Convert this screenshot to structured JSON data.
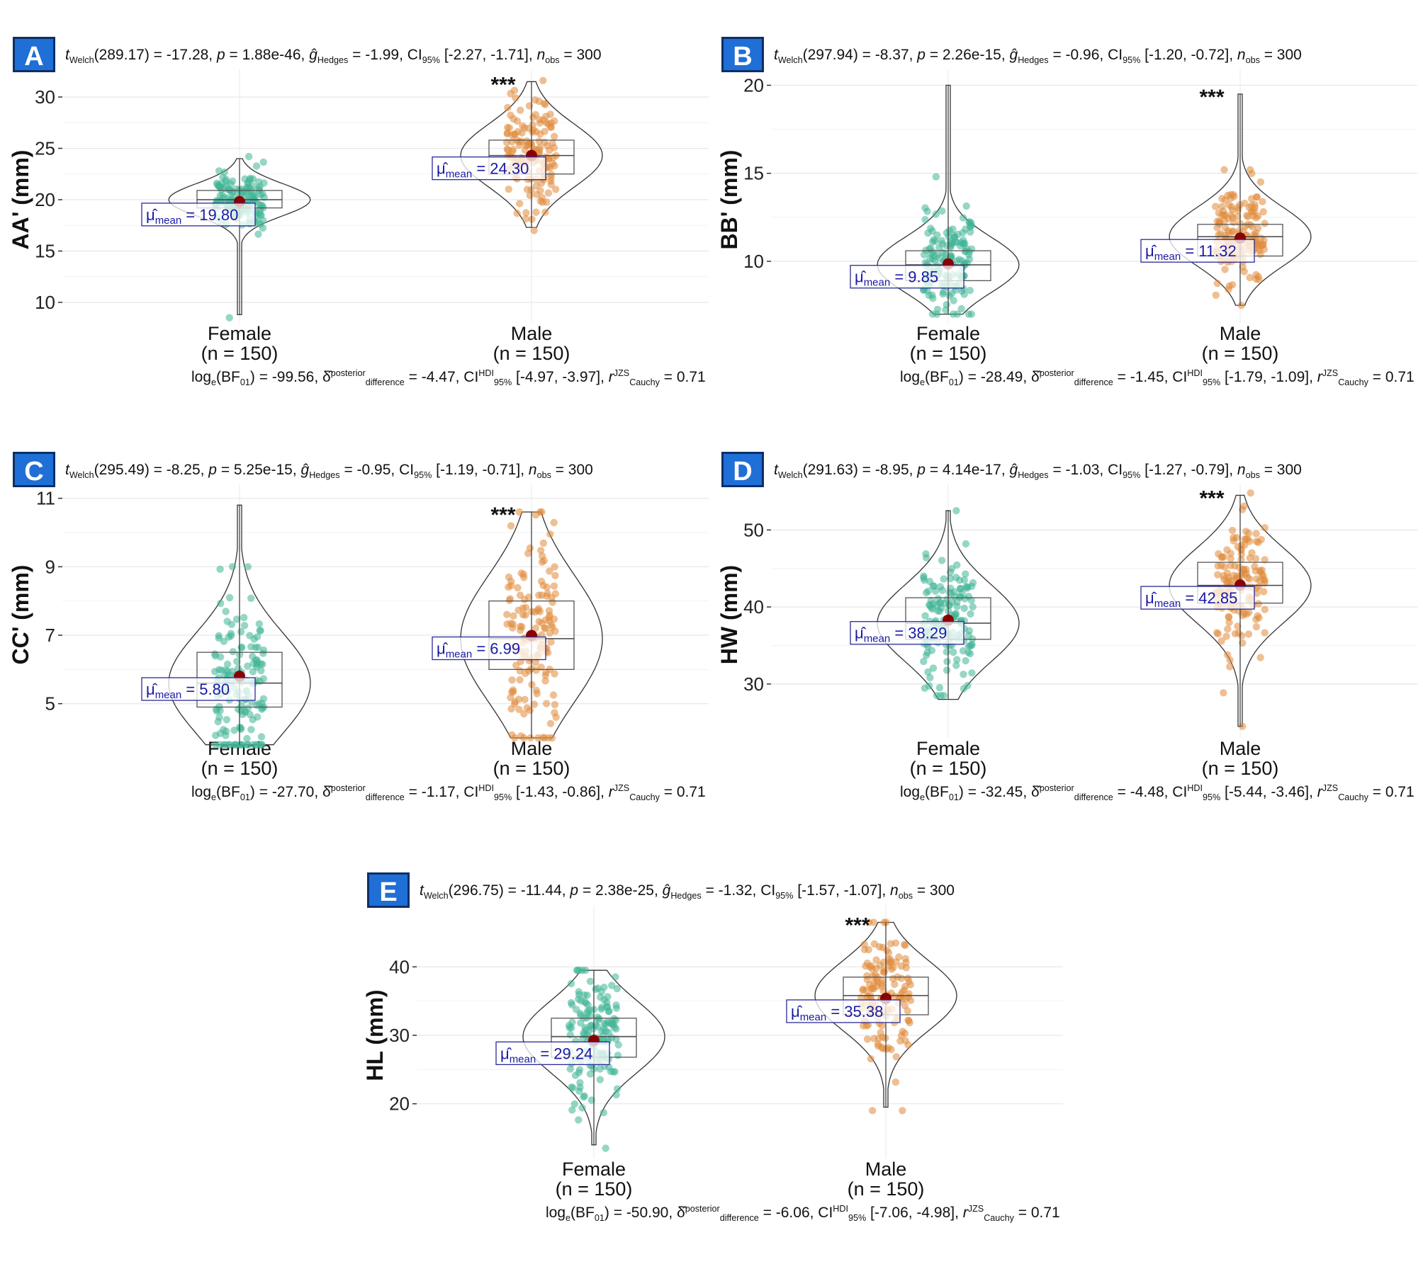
{
  "colors": {
    "female": "#3fb596",
    "male": "#e08a3a",
    "mean_dot": "#8b0000",
    "label_text": "#1a1aa6",
    "badge": "#1f6fd6"
  },
  "chart_data": [
    {
      "panel": "A",
      "type": "violin-box-scatter",
      "ylabel": "AA' (mm)",
      "ylim": [
        8,
        32
      ],
      "yticks": [
        10,
        15,
        20,
        25,
        30
      ],
      "categories": [
        "Female",
        "Male"
      ],
      "category_n": [
        "(n = 150)",
        "(n = 150)"
      ],
      "stats": {
        "welch": "289.17",
        "t": "-17.28",
        "p": "1.88e-46",
        "g": "-1.99",
        "ci": "[-2.27, -1.71]",
        "nobs": "300"
      },
      "bayes": {
        "logbf": "-99.56",
        "delta": "-4.47",
        "ci": "[-4.97, -3.97]",
        "r": "0.71"
      },
      "significance": "***",
      "groups": [
        {
          "name": "Female",
          "mean": 19.8,
          "mean_label": "19.80",
          "min": 8.8,
          "q1": 19.2,
          "median": 20.0,
          "q3": 20.9,
          "max": 24.0,
          "points_min": 8.5,
          "points_max": 24.2
        },
        {
          "name": "Male",
          "mean": 24.3,
          "mean_label": "24.30",
          "min": 17.3,
          "q1": 22.5,
          "median": 24.3,
          "q3": 25.8,
          "max": 31.5,
          "points_min": 17.0,
          "points_max": 31.6
        }
      ]
    },
    {
      "panel": "B",
      "type": "violin-box-scatter",
      "ylabel": "BB' (mm)",
      "ylim": [
        6.5,
        20.5
      ],
      "yticks": [
        10,
        15,
        20
      ],
      "categories": [
        "Female",
        "Male"
      ],
      "category_n": [
        "(n = 150)",
        "(n = 150)"
      ],
      "stats": {
        "welch": "297.94",
        "t": "-8.37",
        "p": "2.26e-15",
        "g": "-0.96",
        "ci": "[-1.20, -0.72]",
        "nobs": "300"
      },
      "bayes": {
        "logbf": "-28.49",
        "delta": "-1.45",
        "ci": "[-1.79, -1.09]",
        "r": "0.71"
      },
      "significance": "***",
      "groups": [
        {
          "name": "Female",
          "mean": 9.85,
          "mean_label": "9.85",
          "min": 7.0,
          "q1": 8.9,
          "median": 9.8,
          "q3": 10.6,
          "max": 20.0,
          "points_min": 7.0,
          "points_max": 14.8
        },
        {
          "name": "Male",
          "mean": 11.32,
          "mean_label": "11.32",
          "min": 7.5,
          "q1": 10.3,
          "median": 11.4,
          "q3": 12.1,
          "max": 19.5,
          "points_min": 7.5,
          "points_max": 15.2
        }
      ]
    },
    {
      "panel": "C",
      "type": "violin-box-scatter",
      "ylabel": "CC' (mm)",
      "ylim": [
        4,
        11.2
      ],
      "yticks": [
        5,
        7,
        9,
        11
      ],
      "categories": [
        "Female",
        "Male"
      ],
      "category_n": [
        "(n = 150)",
        "(n = 150)"
      ],
      "stats": {
        "welch": "295.49",
        "t": "-8.25",
        "p": "5.25e-15",
        "g": "-0.95",
        "ci": "[-1.19, -0.71]",
        "nobs": "300"
      },
      "bayes": {
        "logbf": "-27.70",
        "delta": "-1.17",
        "ci": "[-1.43, -0.86]",
        "r": "0.71"
      },
      "significance": "***",
      "groups": [
        {
          "name": "Female",
          "mean": 5.8,
          "mean_label": "5.80",
          "min": 3.8,
          "q1": 4.9,
          "median": 5.6,
          "q3": 6.5,
          "max": 10.8,
          "points_min": 3.8,
          "points_max": 9.0
        },
        {
          "name": "Male",
          "mean": 6.99,
          "mean_label": "6.99",
          "min": 4.0,
          "q1": 6.0,
          "median": 6.9,
          "q3": 8.0,
          "max": 10.6,
          "points_min": 4.0,
          "points_max": 10.6
        }
      ]
    },
    {
      "panel": "D",
      "type": "violin-box-scatter",
      "ylabel": "HW (mm)",
      "ylim": [
        23,
        55
      ],
      "yticks": [
        30,
        40,
        50
      ],
      "categories": [
        "Female",
        "Male"
      ],
      "category_n": [
        "(n = 150)",
        "(n = 150)"
      ],
      "stats": {
        "welch": "291.63",
        "t": "-8.95",
        "p": "4.14e-17",
        "g": "-1.03",
        "ci": "[-1.27, -0.79]",
        "nobs": "300"
      },
      "bayes": {
        "logbf": "-32.45",
        "delta": "-4.48",
        "ci": "[-5.44, -3.46]",
        "r": "0.71"
      },
      "significance": "***",
      "groups": [
        {
          "name": "Female",
          "mean": 38.29,
          "mean_label": "38.29",
          "min": 28.0,
          "q1": 35.8,
          "median": 37.9,
          "q3": 41.2,
          "max": 52.5,
          "points_min": 28.5,
          "points_max": 52.5
        },
        {
          "name": "Male",
          "mean": 42.85,
          "mean_label": "42.85",
          "min": 24.5,
          "q1": 40.5,
          "median": 42.8,
          "q3": 45.8,
          "max": 54.5,
          "points_min": 24.5,
          "points_max": 54.8
        }
      ]
    },
    {
      "panel": "E",
      "type": "violin-box-scatter",
      "ylabel": "HL (mm)",
      "ylim": [
        12,
        48
      ],
      "yticks": [
        20,
        30,
        40
      ],
      "categories": [
        "Female",
        "Male"
      ],
      "category_n": [
        "(n = 150)",
        "(n = 150)"
      ],
      "stats": {
        "welch": "296.75",
        "t": "-11.44",
        "p": "2.38e-25",
        "g": "-1.32",
        "ci": "[-1.57, -1.07]",
        "nobs": "300"
      },
      "bayes": {
        "logbf": "-50.90",
        "delta": "-6.06",
        "ci": "[-7.06, -4.98]",
        "r": "0.71"
      },
      "significance": "***",
      "groups": [
        {
          "name": "Female",
          "mean": 29.24,
          "mean_label": "29.24",
          "min": 14.0,
          "q1": 26.8,
          "median": 29.8,
          "q3": 32.5,
          "max": 39.5,
          "points_min": 13.5,
          "points_max": 39.5
        },
        {
          "name": "Male",
          "mean": 35.38,
          "mean_label": "35.38",
          "min": 19.5,
          "q1": 33.0,
          "median": 35.8,
          "q3": 38.5,
          "max": 46.5,
          "points_min": 19.0,
          "points_max": 46.5
        }
      ]
    }
  ]
}
